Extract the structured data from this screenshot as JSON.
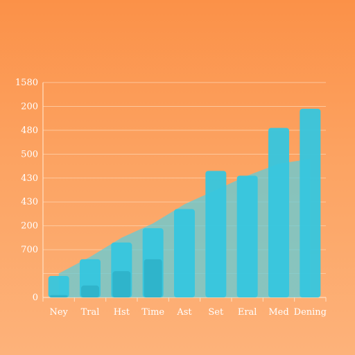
{
  "colors": {
    "background_top": "#fb9148",
    "background_bottom": "#fdb27a",
    "bar_front": "#36c6de",
    "bar_back": "#5fcbd6",
    "bar_inner": "#2fb1c9",
    "area": "#62ccd8",
    "grid": "#ffd2ad",
    "text": "#ffffff"
  },
  "chart_data": {
    "type": "bar",
    "title": "",
    "xlabel": "",
    "ylabel": "",
    "grid": true,
    "legend": "none",
    "y_tick_labels": [
      "1580",
      "200",
      "480",
      "500",
      "430",
      "430",
      "200",
      "700",
      "",
      "0"
    ],
    "categories": [
      "Ney",
      "Tral",
      "Hst",
      "Time",
      "Ast",
      "Set",
      "Eral",
      "Med",
      "Dening"
    ],
    "ylim": [
      0,
      9
    ],
    "series": [
      {
        "values": [
          0.9,
          1.6,
          2.3,
          2.9,
          3.7,
          5.3,
          5.1,
          7.1,
          7.9
        ]
      },
      {
        "values": [
          0.1,
          0.5,
          1.1,
          1.6,
          null,
          null,
          null,
          null,
          null
        ]
      }
    ],
    "area_values": [
      1.0,
      1.7,
      2.5,
      3.1,
      3.9,
      4.5,
      5.1,
      5.6,
      5.8
    ]
  }
}
